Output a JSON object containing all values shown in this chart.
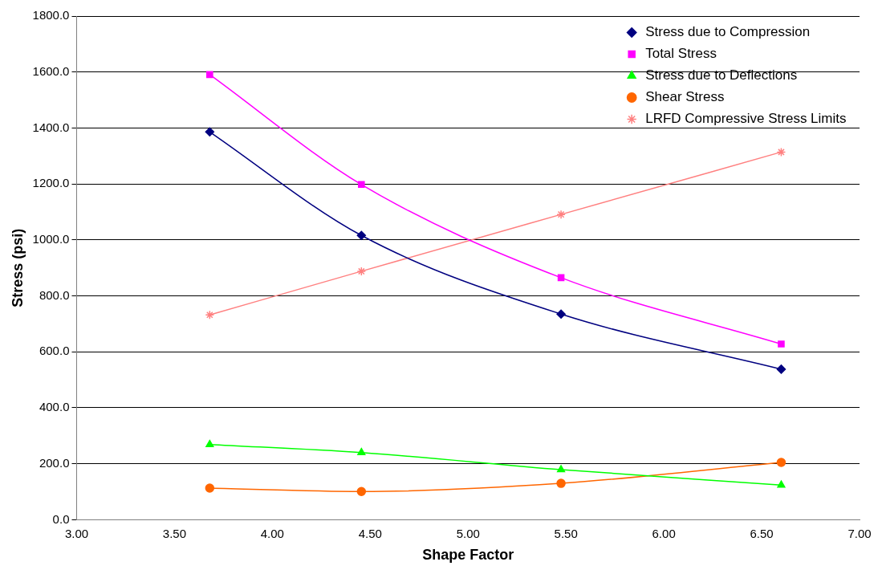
{
  "chart_data": {
    "type": "line",
    "xlabel": "Shape Factor",
    "ylabel": "Stress (psi)",
    "xlim": [
      3,
      7
    ],
    "xticks": [
      {
        "value": 3,
        "label": "3.00"
      },
      {
        "value": 3.5,
        "label": "3.50"
      },
      {
        "value": 4,
        "label": "4.00"
      },
      {
        "value": 4.5,
        "label": "4.50"
      },
      {
        "value": 5,
        "label": "5.00"
      },
      {
        "value": 5.5,
        "label": "5.50"
      },
      {
        "value": 6,
        "label": "6.00"
      },
      {
        "value": 6.5,
        "label": "6.50"
      },
      {
        "value": 7,
        "label": "7.00"
      }
    ],
    "ylim": [
      0,
      1800
    ],
    "yticks": [
      {
        "value": 0,
        "label": "0.0"
      },
      {
        "value": 200,
        "label": "200.0"
      },
      {
        "value": 400,
        "label": "400.0"
      },
      {
        "value": 600,
        "label": "600.0"
      },
      {
        "value": 800,
        "label": "800.0"
      },
      {
        "value": 1000,
        "label": "1000.0"
      },
      {
        "value": 1200,
        "label": "1200.0"
      },
      {
        "value": 1400,
        "label": "1400.0"
      },
      {
        "value": 1600,
        "label": "1600.0"
      },
      {
        "value": 1800,
        "label": "1800.0"
      }
    ],
    "grid": "y",
    "legend": "top right",
    "x": [
      3.68,
      4.455,
      5.475,
      6.6
    ],
    "series": [
      {
        "name": "Stress due to Compression",
        "color": "#000080",
        "marker": "diamond",
        "values": [
          1386,
          1016,
          735,
          538
        ]
      },
      {
        "name": "Total Stress",
        "color": "#ff00ff",
        "marker": "square",
        "values": [
          1591,
          1198,
          865,
          628
        ]
      },
      {
        "name": "Stress due to Deflections",
        "color": "#00ff00",
        "marker": "triangle",
        "values": [
          269,
          240,
          179,
          124
        ]
      },
      {
        "name": "Shear Stress",
        "color": "#ff6600",
        "marker": "circle",
        "values": [
          113,
          101,
          130,
          205
        ]
      },
      {
        "name": "LRFD Compressive Stress Limits",
        "color": "#ff8080",
        "marker": "cross",
        "values": [
          732,
          888,
          1091,
          1314
        ]
      }
    ]
  }
}
